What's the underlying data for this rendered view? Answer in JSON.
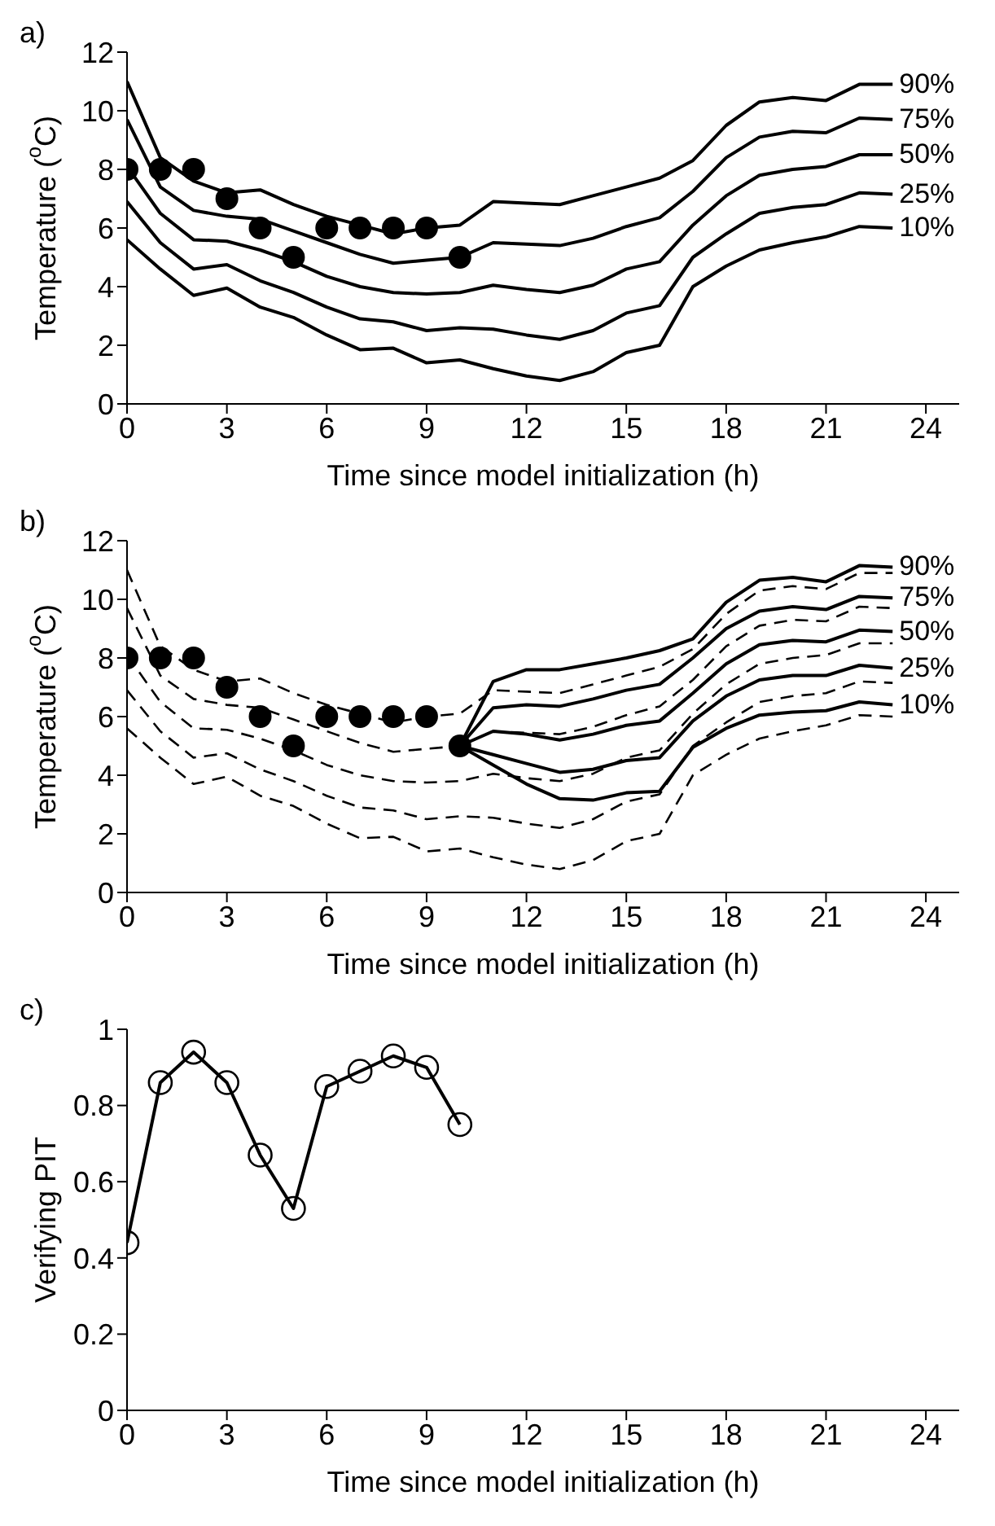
{
  "chart_data": [
    {
      "type": "line",
      "title": "a)",
      "xlabel": "Time since model initialization (h)",
      "ylabel": "Temperature ($^{o}$C)",
      "xlim": [
        0,
        25
      ],
      "xticks": [
        0,
        3,
        6,
        9,
        12,
        15,
        18,
        21,
        24
      ],
      "ylim": [
        0,
        12
      ],
      "yticks": [
        0,
        2,
        4,
        6,
        8,
        10,
        12
      ],
      "grid": false,
      "legend": false,
      "series": [
        {
          "name": "90%",
          "color": "#000000",
          "line_style": "solid",
          "marker": "none",
          "x": [
            0,
            1,
            2,
            3,
            4,
            5,
            6,
            7,
            8,
            9,
            10,
            11,
            12,
            13,
            14,
            15,
            16,
            17,
            18,
            19,
            20,
            21,
            22,
            23
          ],
          "values": [
            11.0,
            8.4,
            7.6,
            7.2,
            7.3,
            6.8,
            6.4,
            6.1,
            5.8,
            6.0,
            6.1,
            6.9,
            6.85,
            6.8,
            7.1,
            7.4,
            7.7,
            8.3,
            9.5,
            10.3,
            10.45,
            10.35,
            10.9,
            10.9
          ]
        },
        {
          "name": "75%",
          "color": "#000000",
          "line_style": "solid",
          "marker": "none",
          "x": [
            0,
            1,
            2,
            3,
            4,
            5,
            6,
            7,
            8,
            9,
            10,
            11,
            12,
            13,
            14,
            15,
            16,
            17,
            18,
            19,
            20,
            21,
            22,
            23
          ],
          "values": [
            9.7,
            7.4,
            6.6,
            6.4,
            6.3,
            5.9,
            5.5,
            5.1,
            4.8,
            4.9,
            5.0,
            5.5,
            5.45,
            5.4,
            5.65,
            6.05,
            6.35,
            7.25,
            8.4,
            9.1,
            9.3,
            9.25,
            9.75,
            9.7
          ]
        },
        {
          "name": "50%",
          "color": "#000000",
          "line_style": "solid",
          "marker": "none",
          "x": [
            0,
            1,
            2,
            3,
            4,
            5,
            6,
            7,
            8,
            9,
            10,
            11,
            12,
            13,
            14,
            15,
            16,
            17,
            18,
            19,
            20,
            21,
            22,
            23
          ],
          "values": [
            8.1,
            6.5,
            5.6,
            5.55,
            5.25,
            4.85,
            4.35,
            4.0,
            3.8,
            3.75,
            3.8,
            4.05,
            3.9,
            3.8,
            4.05,
            4.6,
            4.85,
            6.1,
            7.1,
            7.8,
            8.0,
            8.1,
            8.5,
            8.5
          ]
        },
        {
          "name": "25%",
          "color": "#000000",
          "line_style": "solid",
          "marker": "none",
          "x": [
            0,
            1,
            2,
            3,
            4,
            5,
            6,
            7,
            8,
            9,
            10,
            11,
            12,
            13,
            14,
            15,
            16,
            17,
            18,
            19,
            20,
            21,
            22,
            23
          ],
          "values": [
            6.9,
            5.5,
            4.6,
            4.75,
            4.2,
            3.8,
            3.3,
            2.9,
            2.8,
            2.5,
            2.6,
            2.55,
            2.35,
            2.2,
            2.5,
            3.1,
            3.35,
            5.0,
            5.8,
            6.5,
            6.7,
            6.8,
            7.2,
            7.15
          ]
        },
        {
          "name": "10%",
          "color": "#000000",
          "line_style": "solid",
          "marker": "none",
          "x": [
            0,
            1,
            2,
            3,
            4,
            5,
            6,
            7,
            8,
            9,
            10,
            11,
            12,
            13,
            14,
            15,
            16,
            17,
            18,
            19,
            20,
            21,
            22,
            23
          ],
          "values": [
            5.6,
            4.6,
            3.7,
            3.95,
            3.3,
            2.95,
            2.35,
            1.85,
            1.9,
            1.4,
            1.5,
            1.2,
            0.95,
            0.8,
            1.1,
            1.75,
            2.0,
            4.0,
            4.7,
            5.25,
            5.5,
            5.7,
            6.05,
            6.0
          ]
        },
        {
          "type": "scatter",
          "color": "#000000",
          "marker": "circle",
          "x": [
            0,
            1,
            2,
            3,
            4,
            5,
            6,
            7,
            8,
            9,
            10
          ],
          "values": [
            8,
            8,
            8,
            7,
            6,
            5,
            6,
            6,
            6,
            6,
            5
          ]
        }
      ]
    },
    {
      "type": "line",
      "title": "b)",
      "xlabel": "Time since model initialization (h)",
      "ylabel": "Temperature ($^{o}$C)",
      "xlim": [
        0,
        25
      ],
      "xticks": [
        0,
        3,
        6,
        9,
        12,
        15,
        18,
        21,
        24
      ],
      "ylim": [
        0,
        12
      ],
      "yticks": [
        0,
        2,
        4,
        6,
        8,
        10,
        12
      ],
      "grid": false,
      "legend": false,
      "series": [
        {
          "color": "#000000",
          "line_style": "dashed",
          "marker": "none",
          "x": [
            0,
            1,
            2,
            3,
            4,
            5,
            6,
            7,
            8,
            9,
            10,
            11,
            12,
            13,
            14,
            15,
            16,
            17,
            18,
            19,
            20,
            21,
            22,
            23
          ],
          "values": [
            11.0,
            8.4,
            7.6,
            7.2,
            7.3,
            6.8,
            6.4,
            6.1,
            5.8,
            6.0,
            6.1,
            6.9,
            6.85,
            6.8,
            7.1,
            7.4,
            7.7,
            8.3,
            9.5,
            10.3,
            10.45,
            10.35,
            10.9,
            10.9
          ]
        },
        {
          "color": "#000000",
          "line_style": "dashed",
          "marker": "none",
          "x": [
            0,
            1,
            2,
            3,
            4,
            5,
            6,
            7,
            8,
            9,
            10,
            11,
            12,
            13,
            14,
            15,
            16,
            17,
            18,
            19,
            20,
            21,
            22,
            23
          ],
          "values": [
            9.7,
            7.4,
            6.6,
            6.4,
            6.3,
            5.9,
            5.5,
            5.1,
            4.8,
            4.9,
            5.0,
            5.5,
            5.45,
            5.4,
            5.65,
            6.05,
            6.35,
            7.25,
            8.4,
            9.1,
            9.3,
            9.25,
            9.75,
            9.7
          ]
        },
        {
          "color": "#000000",
          "line_style": "dashed",
          "marker": "none",
          "x": [
            0,
            1,
            2,
            3,
            4,
            5,
            6,
            7,
            8,
            9,
            10,
            11,
            12,
            13,
            14,
            15,
            16,
            17,
            18,
            19,
            20,
            21,
            22,
            23
          ],
          "values": [
            8.1,
            6.5,
            5.6,
            5.55,
            5.25,
            4.85,
            4.35,
            4.0,
            3.8,
            3.75,
            3.8,
            4.05,
            3.9,
            3.8,
            4.05,
            4.6,
            4.85,
            6.1,
            7.1,
            7.8,
            8.0,
            8.1,
            8.5,
            8.5
          ]
        },
        {
          "color": "#000000",
          "line_style": "dashed",
          "marker": "none",
          "x": [
            0,
            1,
            2,
            3,
            4,
            5,
            6,
            7,
            8,
            9,
            10,
            11,
            12,
            13,
            14,
            15,
            16,
            17,
            18,
            19,
            20,
            21,
            22,
            23
          ],
          "values": [
            6.9,
            5.5,
            4.6,
            4.75,
            4.2,
            3.8,
            3.3,
            2.9,
            2.8,
            2.5,
            2.6,
            2.55,
            2.35,
            2.2,
            2.5,
            3.1,
            3.35,
            5.0,
            5.8,
            6.5,
            6.7,
            6.8,
            7.2,
            7.15
          ]
        },
        {
          "color": "#000000",
          "line_style": "dashed",
          "marker": "none",
          "x": [
            0,
            1,
            2,
            3,
            4,
            5,
            6,
            7,
            8,
            9,
            10,
            11,
            12,
            13,
            14,
            15,
            16,
            17,
            18,
            19,
            20,
            21,
            22,
            23
          ],
          "values": [
            5.6,
            4.6,
            3.7,
            3.95,
            3.3,
            2.95,
            2.35,
            1.85,
            1.9,
            1.4,
            1.5,
            1.2,
            0.95,
            0.8,
            1.1,
            1.75,
            2.0,
            4.0,
            4.7,
            5.25,
            5.5,
            5.7,
            6.05,
            6.0
          ]
        },
        {
          "name": "90%",
          "color": "#000000",
          "line_style": "solid",
          "marker": "none",
          "x": [
            10,
            11,
            12,
            13,
            14,
            15,
            16,
            17,
            18,
            19,
            20,
            21,
            22,
            23
          ],
          "values": [
            5,
            7.2,
            7.6,
            7.6,
            7.8,
            8.0,
            8.25,
            8.65,
            9.9,
            10.65,
            10.75,
            10.6,
            11.15,
            11.1
          ]
        },
        {
          "name": "75%",
          "color": "#000000",
          "line_style": "solid",
          "marker": "none",
          "x": [
            10,
            11,
            12,
            13,
            14,
            15,
            16,
            17,
            18,
            19,
            20,
            21,
            22,
            23
          ],
          "values": [
            5,
            6.3,
            6.4,
            6.35,
            6.6,
            6.9,
            7.1,
            8.0,
            9.0,
            9.6,
            9.75,
            9.65,
            10.1,
            10.05
          ]
        },
        {
          "name": "50%",
          "color": "#000000",
          "line_style": "solid",
          "marker": "none",
          "x": [
            10,
            11,
            12,
            13,
            14,
            15,
            16,
            17,
            18,
            19,
            20,
            21,
            22,
            23
          ],
          "values": [
            5,
            5.5,
            5.4,
            5.2,
            5.4,
            5.7,
            5.85,
            6.8,
            7.8,
            8.45,
            8.6,
            8.55,
            8.95,
            8.9
          ]
        },
        {
          "name": "25%",
          "color": "#000000",
          "line_style": "solid",
          "marker": "none",
          "x": [
            10,
            11,
            12,
            13,
            14,
            15,
            16,
            17,
            18,
            19,
            20,
            21,
            22,
            23
          ],
          "values": [
            5,
            4.7,
            4.4,
            4.1,
            4.2,
            4.5,
            4.6,
            5.85,
            6.7,
            7.25,
            7.4,
            7.4,
            7.75,
            7.65
          ]
        },
        {
          "name": "10%",
          "color": "#000000",
          "line_style": "solid",
          "marker": "none",
          "x": [
            10,
            11,
            12,
            13,
            14,
            15,
            16,
            17,
            18,
            19,
            20,
            21,
            22,
            23
          ],
          "values": [
            5,
            4.35,
            3.7,
            3.2,
            3.15,
            3.4,
            3.45,
            4.95,
            5.6,
            6.05,
            6.15,
            6.2,
            6.5,
            6.4
          ]
        },
        {
          "type": "scatter",
          "color": "#000000",
          "marker": "circle",
          "x": [
            0,
            1,
            2,
            3,
            4,
            5,
            6,
            7,
            8,
            9,
            10
          ],
          "values": [
            8,
            8,
            8,
            7,
            6,
            5,
            6,
            6,
            6,
            6,
            5
          ]
        }
      ]
    },
    {
      "type": "line",
      "title": "c)",
      "xlabel": "Time since model initialization (h)",
      "ylabel": "Verifying PIT",
      "xlim": [
        0,
        25
      ],
      "xticks": [
        0,
        3,
        6,
        9,
        12,
        15,
        18,
        21,
        24
      ],
      "ylim": [
        0,
        1
      ],
      "yticks": [
        0,
        0.2,
        0.4,
        0.6,
        0.8,
        1
      ],
      "grid": false,
      "legend": false,
      "series": [
        {
          "color": "#000000",
          "line_style": "solid",
          "marker": "circle",
          "x": [
            0,
            1,
            2,
            3,
            4,
            5,
            6,
            7,
            8,
            9,
            10
          ],
          "values": [
            0.44,
            0.86,
            0.94,
            0.86,
            0.67,
            0.53,
            0.85,
            0.89,
            0.93,
            0.9,
            0.75
          ]
        }
      ]
    }
  ]
}
